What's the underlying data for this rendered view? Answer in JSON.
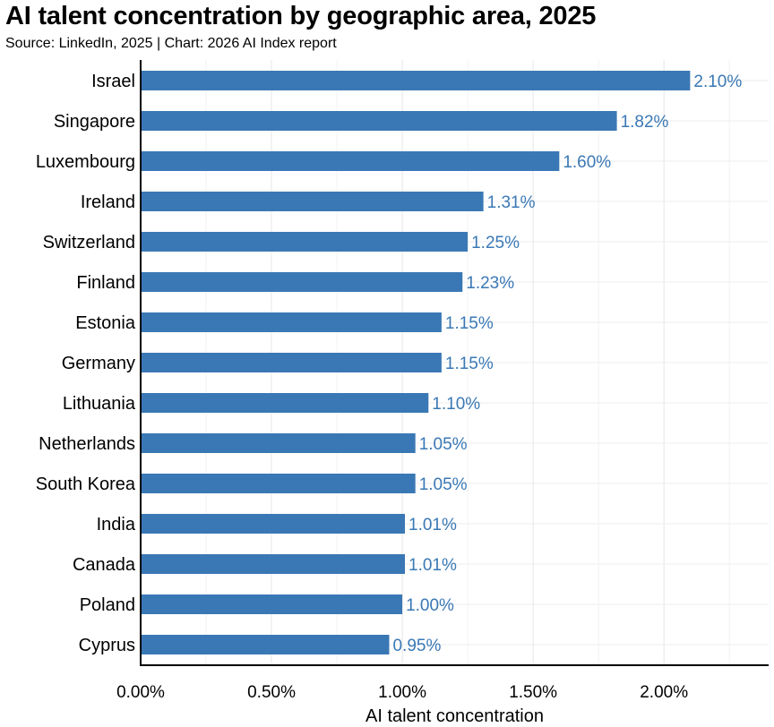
{
  "title": "AI talent concentration by geographic area, 2025",
  "subtitle": "Source: LinkedIn, 2025 | Chart: 2026 AI Index report",
  "chart_data": {
    "type": "bar",
    "orientation": "horizontal",
    "categories": [
      "Israel",
      "Singapore",
      "Luxembourg",
      "Ireland",
      "Switzerland",
      "Finland",
      "Estonia",
      "Germany",
      "Lithuania",
      "Netherlands",
      "South Korea",
      "India",
      "Canada",
      "Poland",
      "Cyprus"
    ],
    "values": [
      2.1,
      1.82,
      1.6,
      1.31,
      1.25,
      1.23,
      1.15,
      1.15,
      1.1,
      1.05,
      1.05,
      1.01,
      1.01,
      1.0,
      0.95
    ],
    "value_labels": [
      "2.10%",
      "1.82%",
      "1.60%",
      "1.31%",
      "1.25%",
      "1.23%",
      "1.15%",
      "1.15%",
      "1.10%",
      "1.05%",
      "1.05%",
      "1.01%",
      "1.01%",
      "1.00%",
      "0.95%"
    ],
    "xlabel": "AI talent concentration",
    "ylabel": "",
    "xlim": [
      0,
      2.4
    ],
    "x_ticks": [
      0,
      0.5,
      1.0,
      1.5,
      2.0
    ],
    "x_tick_labels": [
      "0.00%",
      "0.50%",
      "1.00%",
      "1.50%",
      "2.00%"
    ],
    "grid": true,
    "bar_color": "#3a78b5",
    "value_label_color": "#3a78b5"
  }
}
